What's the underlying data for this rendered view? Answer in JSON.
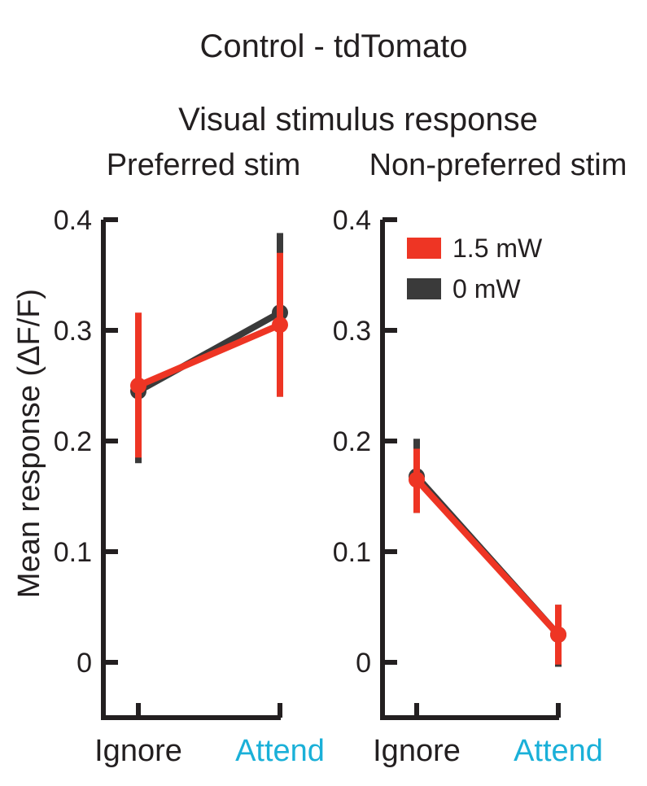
{
  "title": "Control - tdTomato",
  "subtitle": "Visual stimulus response",
  "ylabel": "Mean response (ΔF/F)",
  "colors": {
    "laser": "#ee3524",
    "nolaser": "#3a3a3a",
    "axis": "#231f20",
    "attend": "#1ab0d8",
    "ignore": "#231f20"
  },
  "legend": [
    {
      "label": "1.5 mW",
      "color": "#ee3524"
    },
    {
      "label": "0 mW",
      "color": "#3a3a3a"
    }
  ],
  "chart_data": [
    {
      "type": "line",
      "panel_title": "Preferred stim",
      "categories": [
        "Ignore",
        "Attend"
      ],
      "ylim": [
        -0.05,
        0.4
      ],
      "yticks": [
        "0",
        "0.1",
        "0.2",
        "0.3",
        "0.4"
      ],
      "series": [
        {
          "name": "0 mW",
          "values": [
            0.245,
            0.316
          ],
          "err_low": [
            0.18,
            0.24
          ],
          "err_high": [
            0.31,
            0.388
          ]
        },
        {
          "name": "1.5 mW",
          "values": [
            0.25,
            0.305
          ],
          "err_low": [
            0.185,
            0.24
          ],
          "err_high": [
            0.316,
            0.37
          ]
        }
      ]
    },
    {
      "type": "line",
      "panel_title": "Non-preferred stim",
      "categories": [
        "Ignore",
        "Attend"
      ],
      "ylim": [
        -0.05,
        0.4
      ],
      "yticks": [
        "0",
        "0.1",
        "0.2",
        "0.3",
        "0.4"
      ],
      "series": [
        {
          "name": "0 mW",
          "values": [
            0.168,
            0.025
          ],
          "err_low": [
            0.135,
            -0.004
          ],
          "err_high": [
            0.202,
            0.052
          ]
        },
        {
          "name": "1.5 mW",
          "values": [
            0.165,
            0.025
          ],
          "err_low": [
            0.135,
            -0.002
          ],
          "err_high": [
            0.193,
            0.052
          ]
        }
      ]
    }
  ]
}
